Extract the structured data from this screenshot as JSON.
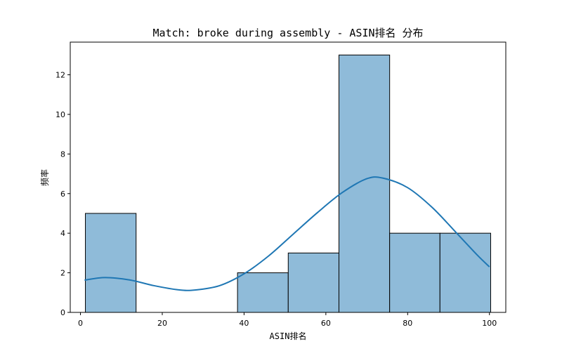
{
  "chart_data": {
    "type": "bar",
    "title": "Match: broke during assembly - ASIN排名 分布",
    "xlabel": "ASIN排名",
    "ylabel": "频率",
    "xlim": [
      -2.5,
      104
    ],
    "ylim": [
      0,
      13.65
    ],
    "xticks": [
      0,
      20,
      40,
      60,
      80,
      100
    ],
    "yticks": [
      0,
      2,
      4,
      6,
      8,
      10,
      12
    ],
    "bins": [
      {
        "x0": 1.2,
        "x1": 13.6,
        "count": 5
      },
      {
        "x0": 13.6,
        "x1": 26.0,
        "count": 0
      },
      {
        "x0": 26.0,
        "x1": 38.4,
        "count": 0
      },
      {
        "x0": 38.4,
        "x1": 50.8,
        "count": 2
      },
      {
        "x0": 50.8,
        "x1": 63.2,
        "count": 3
      },
      {
        "x0": 63.2,
        "x1": 75.6,
        "count": 13
      },
      {
        "x0": 75.6,
        "x1": 87.9,
        "count": 4
      },
      {
        "x0": 87.9,
        "x1": 100.3,
        "count": 4
      }
    ],
    "kde": {
      "x": [
        1,
        6,
        12,
        18,
        24,
        28,
        34,
        40,
        46,
        52,
        58,
        64,
        70,
        74,
        80,
        86,
        92,
        97,
        100
      ],
      "y": [
        1.63,
        1.76,
        1.64,
        1.35,
        1.14,
        1.13,
        1.35,
        1.95,
        2.85,
        3.95,
        5.05,
        6.05,
        6.75,
        6.78,
        6.3,
        5.3,
        4.0,
        2.9,
        2.3
      ]
    },
    "bar_color": "#8fbbd9",
    "bar_edge_color": "#000000",
    "kde_color": "#1f77b4",
    "grid": false
  }
}
